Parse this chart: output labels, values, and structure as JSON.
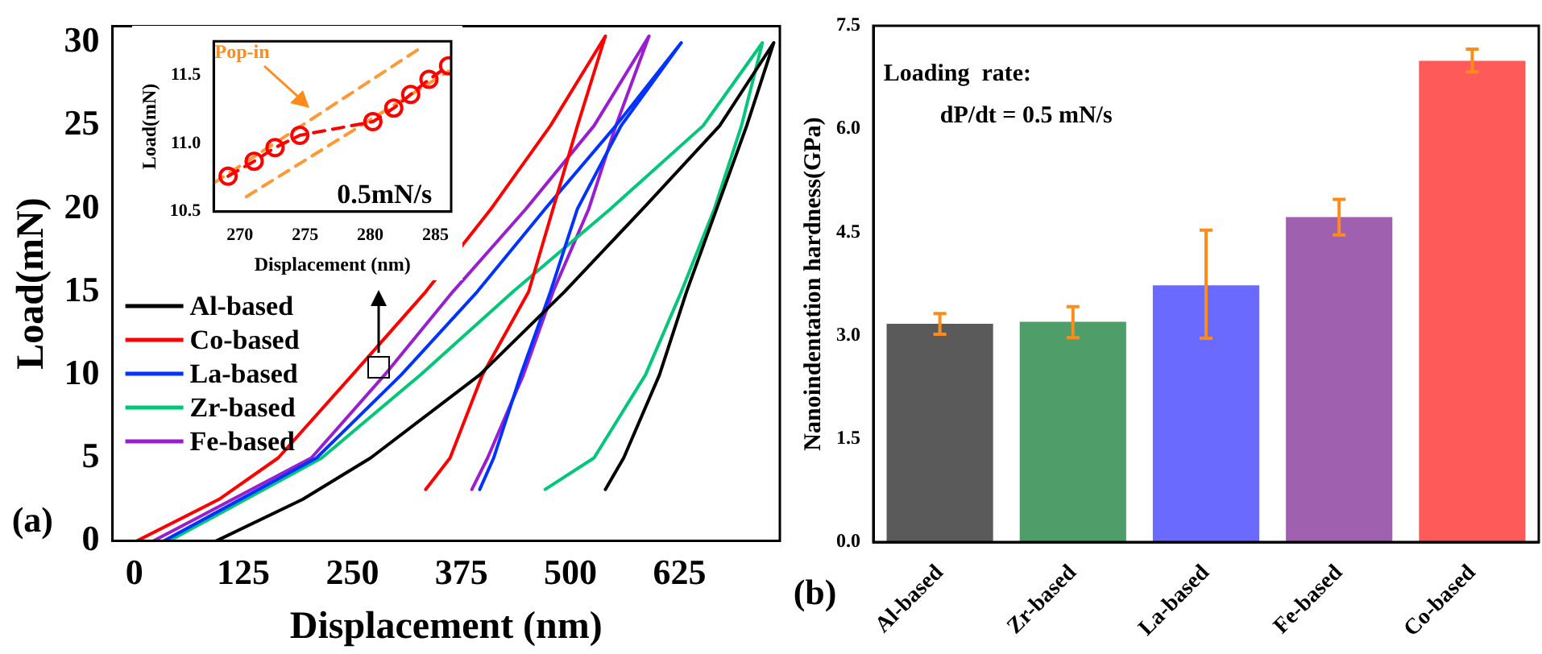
{
  "chart_data": [
    {
      "type": "line",
      "xlabel": "Displacement (nm)",
      "ylabel": "Load(mN)",
      "xlim": [
        -25,
        740
      ],
      "ylim": [
        0,
        31
      ],
      "xticks": [
        0,
        125,
        250,
        375,
        500,
        625
      ],
      "yticks": [
        0,
        5,
        10,
        15,
        20,
        25,
        30
      ],
      "legend": "left",
      "marker": "none",
      "line_style": "solid",
      "annotations": [
        "(a)"
      ],
      "series": [
        {
          "name": "Al-based",
          "color": "#000000",
          "x": [
            94,
            193,
            271,
            396,
            493,
            583,
            671,
            733,
            702,
            633,
            602,
            561,
            540
          ],
          "values": [
            0,
            2.5,
            5,
            10,
            15,
            20,
            25,
            30,
            25,
            15,
            10,
            5,
            3.1
          ]
        },
        {
          "name": "Co-based",
          "color": "#ff0000",
          "x": [
            3,
            97,
            165,
            250,
            334,
            409,
            477,
            540,
            508,
            480,
            452,
            399,
            362,
            334
          ],
          "values": [
            0,
            2.5,
            5,
            10,
            15,
            20,
            25,
            30.4,
            25,
            20,
            15,
            10,
            5,
            3.1
          ]
        },
        {
          "name": "La-based",
          "color": "#0033ff",
          "x": [
            34,
            209,
            306,
            393,
            471,
            552,
            627,
            558,
            508,
            477,
            443,
            412,
            396
          ],
          "values": [
            0,
            5,
            10,
            15,
            20,
            25,
            30,
            25,
            20,
            15,
            10,
            5,
            3.1
          ]
        },
        {
          "name": "Zr-based",
          "color": "#00c878",
          "x": [
            40,
            215,
            328,
            434,
            546,
            652,
            720,
            696,
            665,
            627,
            586,
            527,
            471
          ],
          "values": [
            0,
            5,
            10,
            15,
            20,
            25,
            30,
            25,
            20,
            15,
            10,
            5,
            3.1
          ]
        },
        {
          "name": "Fe-based",
          "color": "#9a1ed0",
          "x": [
            22,
            203,
            287,
            365,
            449,
            527,
            590,
            552,
            521,
            480,
            446,
            405,
            387
          ],
          "values": [
            0,
            5,
            10,
            15,
            20,
            25,
            30.4,
            25,
            20,
            15,
            10,
            5,
            3.1
          ]
        }
      ]
    },
    {
      "type": "line",
      "xlabel": "Displacement (nm)",
      "ylabel": "Load(mN)",
      "xlim": [
        268,
        286.2
      ],
      "ylim": [
        10.5,
        11.75
      ],
      "xticks": [
        270,
        275,
        280,
        285
      ],
      "yticks": [
        {
          "value": 10.5,
          "label": "10.5"
        },
        {
          "value": 11,
          "label": "11.0"
        },
        {
          "value": 11.5,
          "label": "11.5"
        }
      ],
      "marker": "circle",
      "line_style": "dashed",
      "annotations": [
        "Pop-in",
        "0.5mN/s"
      ],
      "series": [
        {
          "color": "#ff0000",
          "x": [
            269.1,
            271.1,
            272.7,
            274.6,
            280.2,
            281.8,
            283.1,
            284.5,
            286.0
          ],
          "values": [
            10.76,
            10.87,
            10.97,
            11.06,
            11.16,
            11.26,
            11.36,
            11.47,
            11.57
          ]
        },
        {
          "color": "#ff9933",
          "marker": "none",
          "x": [
            268,
            284.0
          ],
          "values": [
            10.71,
            11.71
          ]
        },
        {
          "color": "#ff9933",
          "marker": "none",
          "x": [
            270.5,
            286
          ],
          "values": [
            10.61,
            11.53
          ]
        }
      ]
    },
    {
      "type": "bar",
      "ylabel": "Nanoindentation hardness(GPa)",
      "categories": [
        "Al-based",
        "Zr-based",
        "La-based",
        "Fe-based",
        "Co-based"
      ],
      "ylim": [
        0,
        7.5
      ],
      "yticks": [
        {
          "value": 0,
          "label": "0.0"
        },
        {
          "value": 1.5,
          "label": "1.5"
        },
        {
          "value": 3,
          "label": "3.0"
        },
        {
          "value": 4.5,
          "label": "4.5"
        },
        {
          "value": 6,
          "label": "6.0"
        },
        {
          "value": 7.5,
          "label": "7.5"
        }
      ],
      "values": [
        3.17,
        3.2,
        3.73,
        4.72,
        6.99
      ],
      "errors": [
        [
          3.02,
          3.32
        ],
        [
          2.97,
          3.42
        ],
        [
          2.96,
          4.53
        ],
        [
          4.46,
          4.98
        ],
        [
          6.83,
          7.16
        ]
      ],
      "colors": [
        "#5a5a5a",
        "#4f9e6a",
        "#6a6aff",
        "#a060b0",
        "#ff5a5a"
      ],
      "annotations": [
        "Loading  rate:",
        "dP/dt = 0.5 mN/s",
        "(b)"
      ]
    }
  ]
}
